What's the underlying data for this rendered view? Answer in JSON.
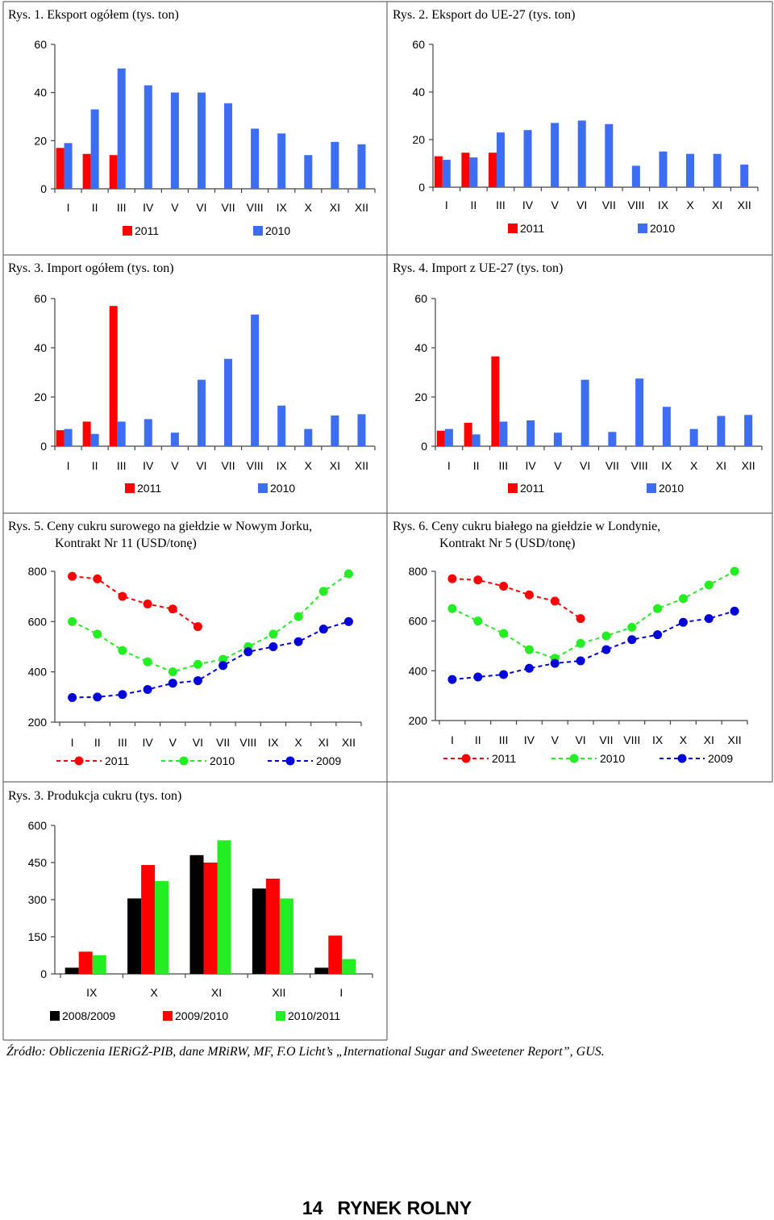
{
  "source_note": "Źródło: Obliczenia IERiGŻ-PIB, dane MRiRW, MF, F.O Licht’s „International Sugar and Sweetener Report”, GUS.",
  "footer": {
    "page_number": "14",
    "title": "RYNEK ROLNY"
  },
  "colors": {
    "red": "#ff0000",
    "blue": "#3d6df2",
    "green": "#22ee22",
    "navy": "#0000d8",
    "black": "#000000",
    "axis": "#444444"
  },
  "chart_data": [
    {
      "id": "rys1",
      "type": "bar",
      "title": "Rys. 1. Eksport ogółem (tys. ton)",
      "categories": [
        "I",
        "II",
        "III",
        "IV",
        "V",
        "VI",
        "VII",
        "VIII",
        "IX",
        "X",
        "XI",
        "XII"
      ],
      "yticks": [
        0,
        20,
        40,
        60
      ],
      "ylim": [
        0,
        60
      ],
      "series": [
        {
          "name": "2011",
          "color": "red",
          "values": [
            17,
            14.5,
            14,
            null,
            null,
            null,
            null,
            null,
            null,
            null,
            null,
            null
          ]
        },
        {
          "name": "2010",
          "color": "blue",
          "values": [
            19,
            33,
            50,
            43,
            40,
            40,
            35.5,
            25,
            23,
            14,
            19.5,
            18.5
          ]
        }
      ]
    },
    {
      "id": "rys2",
      "type": "bar",
      "title": "Rys. 2. Eksport do UE-27 (tys. ton)",
      "categories": [
        "I",
        "II",
        "III",
        "IV",
        "V",
        "VI",
        "VII",
        "VIII",
        "IX",
        "X",
        "XI",
        "XII"
      ],
      "yticks": [
        0,
        20,
        40,
        60
      ],
      "ylim": [
        0,
        60
      ],
      "series": [
        {
          "name": "2011",
          "color": "red",
          "values": [
            13,
            14.5,
            14.5,
            null,
            null,
            null,
            null,
            null,
            null,
            null,
            null,
            null
          ]
        },
        {
          "name": "2010",
          "color": "blue",
          "values": [
            11.5,
            12.5,
            23,
            24,
            27,
            28,
            26.5,
            9,
            15,
            14,
            14,
            9.5
          ]
        }
      ]
    },
    {
      "id": "rys3",
      "type": "bar",
      "title": "Rys. 3. Import ogółem (tys. ton)",
      "categories": [
        "I",
        "II",
        "III",
        "IV",
        "V",
        "VI",
        "VII",
        "VIII",
        "IX",
        "X",
        "XI",
        "XII"
      ],
      "yticks": [
        0,
        20,
        40,
        60
      ],
      "ylim": [
        0,
        60
      ],
      "series": [
        {
          "name": "2011",
          "color": "red",
          "values": [
            6.5,
            10,
            57,
            null,
            null,
            null,
            null,
            null,
            null,
            null,
            null,
            null
          ]
        },
        {
          "name": "2010",
          "color": "blue",
          "values": [
            7,
            5,
            10,
            11,
            5.5,
            27,
            35.5,
            53.5,
            16.5,
            7,
            12.5,
            13
          ]
        }
      ]
    },
    {
      "id": "rys4",
      "type": "bar",
      "title": "Rys. 4. Import z UE-27 (tys. ton)",
      "categories": [
        "I",
        "II",
        "III",
        "IV",
        "V",
        "VI",
        "VII",
        "VIII",
        "IX",
        "X",
        "XI",
        "XII"
      ],
      "yticks": [
        0,
        20,
        40,
        60
      ],
      "ylim": [
        0,
        60
      ],
      "series": [
        {
          "name": "2011",
          "color": "red",
          "values": [
            6.3,
            9.5,
            36.5,
            null,
            null,
            null,
            null,
            null,
            null,
            null,
            null,
            null
          ]
        },
        {
          "name": "2010",
          "color": "blue",
          "values": [
            7,
            4.8,
            10,
            10.5,
            5.5,
            27,
            5.8,
            27.5,
            16,
            7,
            12.3,
            12.7
          ]
        }
      ]
    },
    {
      "id": "rys5",
      "type": "line",
      "title": "Rys. 5. Ceny cukru surowego na giełdzie w Nowym Jorku,",
      "title2": "Kontrakt Nr 11 (USD/tonę)",
      "categories": [
        "I",
        "II",
        "III",
        "IV",
        "V",
        "VI",
        "VII",
        "VIII",
        "IX",
        "X",
        "XI",
        "XII"
      ],
      "yticks": [
        200,
        400,
        600,
        800
      ],
      "ylim": [
        200,
        800
      ],
      "series": [
        {
          "name": "2011",
          "color": "red",
          "values": [
            780,
            770,
            700,
            670,
            650,
            580,
            null,
            null,
            null,
            null,
            null,
            null
          ]
        },
        {
          "name": "2010",
          "color": "green",
          "values": [
            600,
            550,
            485,
            440,
            400,
            430,
            450,
            500,
            550,
            620,
            720,
            790
          ]
        },
        {
          "name": "2009",
          "color": "navy",
          "values": [
            298,
            300,
            310,
            330,
            355,
            365,
            425,
            480,
            500,
            520,
            570,
            600
          ]
        }
      ]
    },
    {
      "id": "rys6",
      "type": "line",
      "title": "Rys. 6. Ceny cukru białego na giełdzie w Londynie,",
      "title2": "Kontrakt Nr 5 (USD/tonę)",
      "categories": [
        "I",
        "II",
        "III",
        "IV",
        "V",
        "VI",
        "VII",
        "VIII",
        "IX",
        "X",
        "XI",
        "XII"
      ],
      "yticks": [
        200,
        400,
        600,
        800
      ],
      "ylim": [
        200,
        800
      ],
      "series": [
        {
          "name": "2011",
          "color": "red",
          "values": [
            770,
            765,
            740,
            705,
            680,
            610,
            null,
            null,
            null,
            null,
            null,
            null
          ]
        },
        {
          "name": "2010",
          "color": "green",
          "values": [
            650,
            600,
            550,
            485,
            450,
            510,
            540,
            575,
            650,
            690,
            745,
            800
          ]
        },
        {
          "name": "2009",
          "color": "navy",
          "values": [
            365,
            375,
            385,
            410,
            430,
            440,
            485,
            525,
            545,
            595,
            610,
            640
          ]
        }
      ]
    },
    {
      "id": "rys7",
      "type": "bar",
      "title": "Rys. 3. Produkcja cukru (tys. ton)",
      "categories": [
        "IX",
        "X",
        "XI",
        "XII",
        "I"
      ],
      "yticks": [
        0,
        150,
        300,
        450,
        600
      ],
      "ylim": [
        0,
        600
      ],
      "series": [
        {
          "name": "2008/2009",
          "color": "black",
          "values": [
            25,
            305,
            480,
            345,
            25
          ]
        },
        {
          "name": "2009/2010",
          "color": "red",
          "values": [
            90,
            440,
            450,
            385,
            155
          ]
        },
        {
          "name": "2010/2011",
          "color": "green",
          "values": [
            75,
            375,
            540,
            305,
            60
          ]
        }
      ]
    }
  ]
}
